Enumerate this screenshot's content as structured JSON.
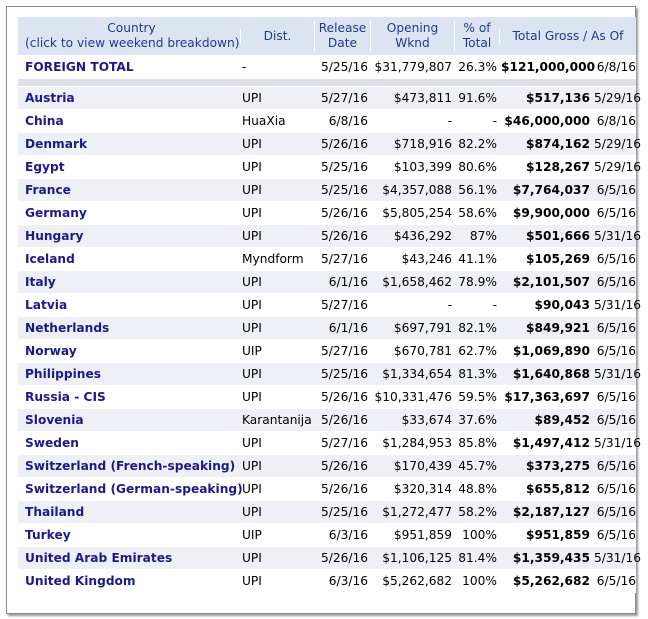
{
  "header": {
    "country_line1": "Country",
    "country_line2": "(click to view weekend breakdown)",
    "dist": "Dist.",
    "release_line1": "Release",
    "release_line2": "Date",
    "opening_line1": "Opening",
    "opening_line2": "Wknd",
    "pct_line1": "% of",
    "pct_line2": "Total",
    "total_gross_as_of": "Total Gross / As Of"
  },
  "total_row": {
    "country": "FOREIGN TOTAL",
    "dist": "-",
    "release": "5/25/16",
    "opening": "$31,779,807",
    "pct": "26.3%",
    "gross": "$121,000,000",
    "as_of": "6/8/16"
  },
  "rows": [
    {
      "country": "Austria",
      "dist": "UPI",
      "release": "5/27/16",
      "opening": "$473,811",
      "pct": "91.6%",
      "gross": "$517,136",
      "as_of": "5/29/16"
    },
    {
      "country": "China",
      "dist": "HuaXia",
      "release": "6/8/16",
      "opening": "-",
      "pct": "-",
      "gross": "$46,000,000",
      "as_of": "6/8/16"
    },
    {
      "country": "Denmark",
      "dist": "UPI",
      "release": "5/26/16",
      "opening": "$718,916",
      "pct": "82.2%",
      "gross": "$874,162",
      "as_of": "5/29/16"
    },
    {
      "country": "Egypt",
      "dist": "UPI",
      "release": "5/25/16",
      "opening": "$103,399",
      "pct": "80.6%",
      "gross": "$128,267",
      "as_of": "5/29/16"
    },
    {
      "country": "France",
      "dist": "UPI",
      "release": "5/25/16",
      "opening": "$4,357,088",
      "pct": "56.1%",
      "gross": "$7,764,037",
      "as_of": "6/5/16"
    },
    {
      "country": "Germany",
      "dist": "UPI",
      "release": "5/26/16",
      "opening": "$5,805,254",
      "pct": "58.6%",
      "gross": "$9,900,000",
      "as_of": "6/5/16"
    },
    {
      "country": "Hungary",
      "dist": "UPI",
      "release": "5/26/16",
      "opening": "$436,292",
      "pct": "87%",
      "gross": "$501,666",
      "as_of": "5/31/16"
    },
    {
      "country": "Iceland",
      "dist": "Myndform",
      "release": "5/27/16",
      "opening": "$43,246",
      "pct": "41.1%",
      "gross": "$105,269",
      "as_of": "6/5/16"
    },
    {
      "country": "Italy",
      "dist": "UPI",
      "release": "6/1/16",
      "opening": "$1,658,462",
      "pct": "78.9%",
      "gross": "$2,101,507",
      "as_of": "6/5/16"
    },
    {
      "country": "Latvia",
      "dist": "UPI",
      "release": "5/27/16",
      "opening": "-",
      "pct": "-",
      "gross": "$90,043",
      "as_of": "5/31/16"
    },
    {
      "country": "Netherlands",
      "dist": "UPI",
      "release": "6/1/16",
      "opening": "$697,791",
      "pct": "82.1%",
      "gross": "$849,921",
      "as_of": "6/5/16"
    },
    {
      "country": "Norway",
      "dist": "UIP",
      "release": "5/27/16",
      "opening": "$670,781",
      "pct": "62.7%",
      "gross": "$1,069,890",
      "as_of": "6/5/16"
    },
    {
      "country": "Philippines",
      "dist": "UPI",
      "release": "5/25/16",
      "opening": "$1,334,654",
      "pct": "81.3%",
      "gross": "$1,640,868",
      "as_of": "5/31/16"
    },
    {
      "country": "Russia - CIS",
      "dist": "UPI",
      "release": "5/26/16",
      "opening": "$10,331,476",
      "pct": "59.5%",
      "gross": "$17,363,697",
      "as_of": "6/5/16"
    },
    {
      "country": "Slovenia",
      "dist": "Karantanija",
      "release": "5/26/16",
      "opening": "$33,674",
      "pct": "37.6%",
      "gross": "$89,452",
      "as_of": "6/5/16"
    },
    {
      "country": "Sweden",
      "dist": "UPI",
      "release": "5/27/16",
      "opening": "$1,284,953",
      "pct": "85.8%",
      "gross": "$1,497,412",
      "as_of": "5/31/16"
    },
    {
      "country": "Switzerland (French-speaking)",
      "dist": "UPI",
      "release": "5/26/16",
      "opening": "$170,439",
      "pct": "45.7%",
      "gross": "$373,275",
      "as_of": "6/5/16"
    },
    {
      "country": "Switzerland (German-speaking)",
      "dist": "UPI",
      "release": "5/26/16",
      "opening": "$320,314",
      "pct": "48.8%",
      "gross": "$655,812",
      "as_of": "6/5/16"
    },
    {
      "country": "Thailand",
      "dist": "UPI",
      "release": "5/25/16",
      "opening": "$1,272,477",
      "pct": "58.2%",
      "gross": "$2,187,127",
      "as_of": "6/5/16"
    },
    {
      "country": "Turkey",
      "dist": "UIP",
      "release": "6/3/16",
      "opening": "$951,859",
      "pct": "100%",
      "gross": "$951,859",
      "as_of": "6/5/16"
    },
    {
      "country": "United Arab Emirates",
      "dist": "UPI",
      "release": "5/26/16",
      "opening": "$1,106,125",
      "pct": "81.4%",
      "gross": "$1,359,435",
      "as_of": "5/31/16"
    },
    {
      "country": "United Kingdom",
      "dist": "UPI",
      "release": "6/3/16",
      "opening": "$5,262,682",
      "pct": "100%",
      "gross": "$5,262,682",
      "as_of": "6/5/16"
    }
  ],
  "colors": {
    "header_bg": "#dde4f1",
    "header_text": "#1f3a93",
    "country_link": "#1a1a8c",
    "separator": "#dfe0e6",
    "alt_row": "#eef0f6"
  }
}
